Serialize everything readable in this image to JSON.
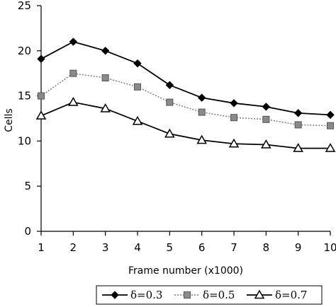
{
  "chart_data": {
    "type": "line",
    "xlabel": "Frame number (x1000)",
    "ylabel": "Cells",
    "xlim": [
      1,
      10
    ],
    "ylim": [
      0,
      25
    ],
    "x_ticks": [
      "1",
      "2",
      "3",
      "4",
      "5",
      "6",
      "7",
      "8",
      "9",
      "10"
    ],
    "y_ticks": [
      "0",
      "5",
      "10",
      "15",
      "20",
      "25"
    ],
    "grid": false,
    "legend_position": "bottom",
    "series": [
      {
        "name": "δ=0.3",
        "marker": "diamond",
        "line_style": "solid",
        "color": "#000000",
        "x": [
          1,
          2,
          3,
          4,
          5,
          6,
          7,
          8,
          9,
          10
        ],
        "values": [
          19.1,
          21.0,
          20.0,
          18.6,
          16.2,
          14.8,
          14.2,
          13.8,
          13.1,
          12.9
        ]
      },
      {
        "name": "δ=0.5",
        "marker": "square",
        "line_style": "dotted",
        "color": "#777777",
        "x": [
          1,
          2,
          3,
          4,
          5,
          6,
          7,
          8,
          9,
          10
        ],
        "values": [
          15.0,
          17.5,
          17.0,
          16.0,
          14.3,
          13.2,
          12.6,
          12.4,
          11.8,
          11.7
        ]
      },
      {
        "name": "δ=0.7",
        "marker": "triangle",
        "line_style": "solid",
        "color": "#000000",
        "x": [
          1,
          2,
          3,
          4,
          5,
          6,
          7,
          8,
          9,
          10
        ],
        "values": [
          12.8,
          14.3,
          13.6,
          12.2,
          10.8,
          10.1,
          9.7,
          9.6,
          9.2,
          9.2
        ]
      }
    ]
  }
}
